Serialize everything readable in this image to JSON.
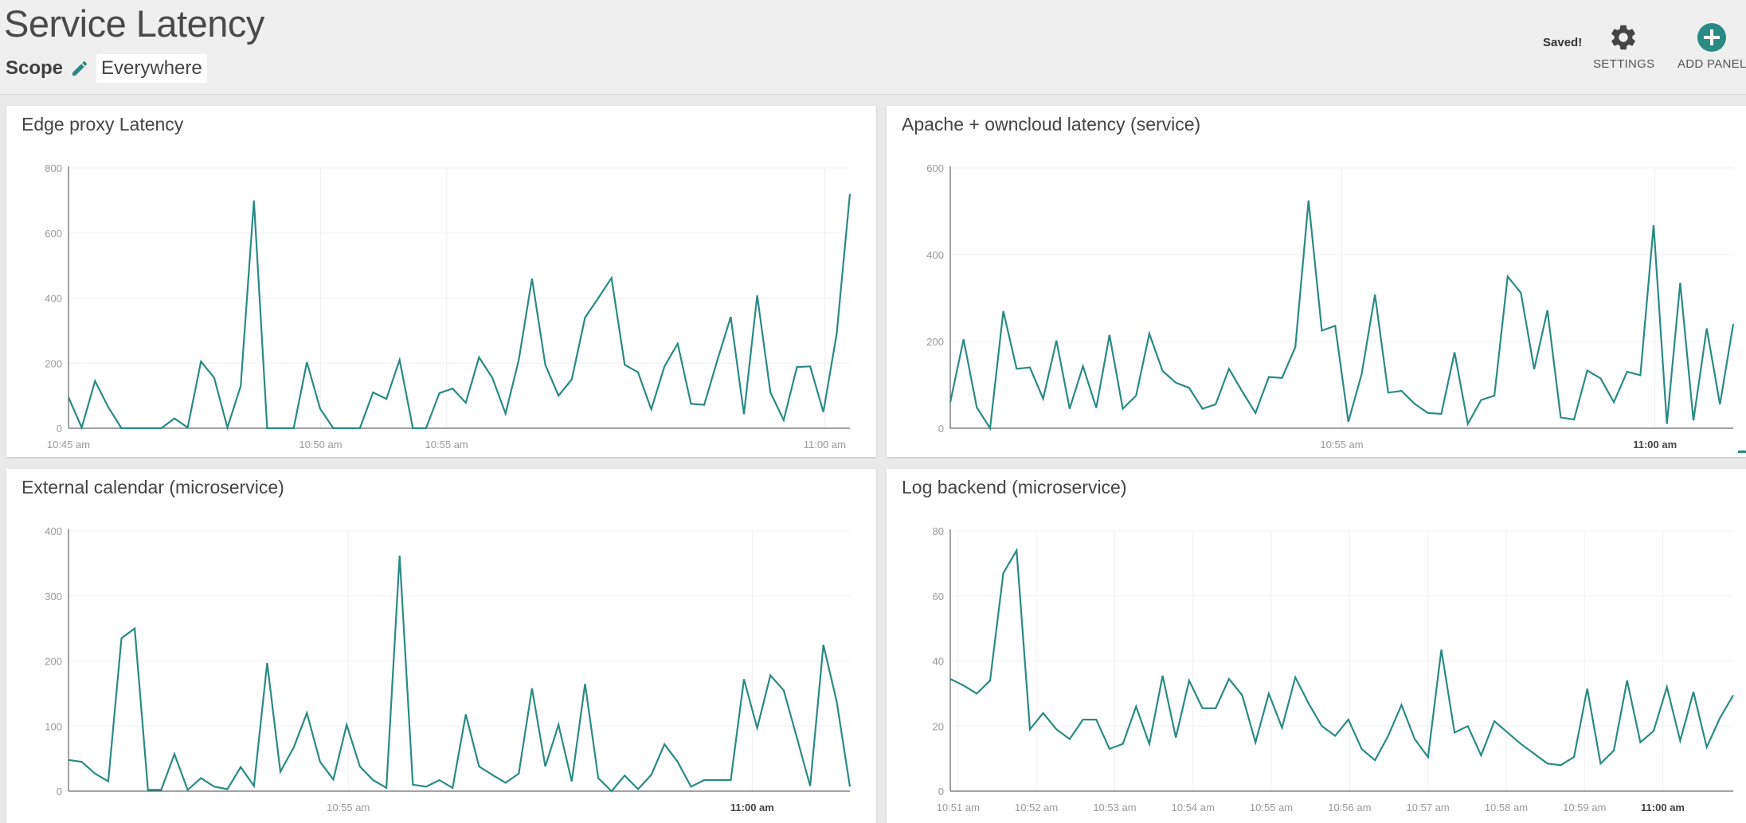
{
  "page": {
    "title": "Service Latency",
    "scope_label": "Scope",
    "scope_value": "Everywhere",
    "saved_text": "Saved!",
    "settings_label": "SETTINGS",
    "add_panel_label": "ADD PANEL",
    "accent_color": "#2a8a84",
    "icons": [
      "edit-icon",
      "gear-icon",
      "plus-circle-icon"
    ]
  },
  "chart_data": [
    {
      "type": "line",
      "title": "Edge proxy Latency",
      "ylim": [
        0,
        800
      ],
      "yticks": [
        0,
        200,
        400,
        600,
        800
      ],
      "xlim": [
        0,
        15.5
      ],
      "xticks": [
        {
          "x": 0,
          "label": "10:45 am",
          "bold": false
        },
        {
          "x": 5,
          "label": "10:50 am",
          "bold": false
        },
        {
          "x": 7.5,
          "label": "10:55 am",
          "bold": false
        },
        {
          "x": 15,
          "label": "11:00 am",
          "bold": false
        }
      ],
      "color": "#2a8a84",
      "grid": true,
      "values": [
        95,
        2,
        145,
        65,
        0,
        0,
        0,
        0,
        30,
        2,
        205,
        155,
        2,
        130,
        700,
        0,
        0,
        0,
        203,
        60,
        0,
        0,
        0,
        110,
        90,
        210,
        0,
        0,
        108,
        122,
        78,
        218,
        155,
        45,
        210,
        460,
        195,
        100,
        150,
        340,
        400,
        462,
        195,
        172,
        58,
        190,
        260,
        75,
        72,
        210,
        342,
        43,
        408,
        110,
        25,
        188,
        190,
        50,
        290,
        720
      ]
    },
    {
      "type": "line",
      "title": "Apache + owncloud latency (service)",
      "ylim": [
        0,
        600
      ],
      "yticks": [
        0,
        200,
        400,
        600
      ],
      "xlim": [
        0,
        10
      ],
      "xticks": [
        {
          "x": 5,
          "label": "10:55 am",
          "bold": false
        },
        {
          "x": 9,
          "label": "11:00 am",
          "bold": true
        }
      ],
      "color": "#2a8a84",
      "grid": true,
      "values": [
        60,
        205,
        48,
        0,
        270,
        137,
        140,
        68,
        202,
        45,
        143,
        47,
        215,
        45,
        75,
        218,
        132,
        105,
        93,
        45,
        55,
        137,
        85,
        35,
        118,
        116,
        187,
        525,
        225,
        236,
        15,
        125,
        308,
        82,
        86,
        56,
        35,
        33,
        175,
        10,
        65,
        75,
        350,
        312,
        136,
        272,
        25,
        20,
        133,
        115,
        60,
        130,
        122,
        468,
        10,
        335,
        18,
        230,
        55,
        240
      ]
    },
    {
      "type": "line",
      "title": "External calendar (microservice)",
      "ylim": [
        0,
        400
      ],
      "yticks": [
        0,
        100,
        200,
        300,
        400
      ],
      "xlim": [
        0,
        10
      ],
      "xticks": [
        {
          "x": 3.58,
          "label": "10:55 am",
          "bold": false
        },
        {
          "x": 8.75,
          "label": "11:00 am",
          "bold": true
        }
      ],
      "color": "#2a8a84",
      "grid": true,
      "values": [
        48,
        45,
        27,
        15,
        235,
        250,
        2,
        2,
        57,
        2,
        20,
        7,
        3,
        37,
        8,
        197,
        30,
        67,
        120,
        45,
        18,
        102,
        38,
        17,
        5,
        362,
        10,
        7,
        17,
        5,
        118,
        38,
        25,
        13,
        27,
        158,
        38,
        102,
        15,
        165,
        20,
        0,
        24,
        3,
        25,
        72,
        45,
        7,
        17,
        17,
        17,
        172,
        97,
        178,
        155,
        82,
        8,
        225,
        138,
        7
      ]
    },
    {
      "type": "line",
      "title": "Log backend (microservice)",
      "ylim": [
        0,
        80
      ],
      "yticks": [
        0,
        20,
        40,
        60,
        80
      ],
      "xlim": [
        0,
        10
      ],
      "xticks": [
        {
          "x": 0.1,
          "label": "10:51 am",
          "bold": false
        },
        {
          "x": 1.1,
          "label": "10:52 am",
          "bold": false
        },
        {
          "x": 2.1,
          "label": "10:53 am",
          "bold": false
        },
        {
          "x": 3.1,
          "label": "10:54 am",
          "bold": false
        },
        {
          "x": 4.1,
          "label": "10:55 am",
          "bold": false
        },
        {
          "x": 5.1,
          "label": "10:56 am",
          "bold": false
        },
        {
          "x": 6.1,
          "label": "10:57 am",
          "bold": false
        },
        {
          "x": 7.1,
          "label": "10:58 am",
          "bold": false
        },
        {
          "x": 8.1,
          "label": "10:59 am",
          "bold": false
        },
        {
          "x": 9.1,
          "label": "11:00 am",
          "bold": true
        }
      ],
      "color": "#2a8a84",
      "grid": true,
      "values": [
        34.5,
        32.5,
        30,
        34,
        67,
        74,
        19,
        24,
        19,
        16,
        22,
        22,
        13,
        14.5,
        26,
        14.5,
        35.5,
        16.5,
        34,
        25.5,
        25.5,
        34.5,
        29.5,
        15,
        30,
        19.5,
        35,
        27,
        20,
        17,
        22,
        13,
        9.5,
        17,
        26.5,
        16,
        10.5,
        43.5,
        18,
        20,
        11,
        21.5,
        18,
        14.5,
        11.5,
        8.5,
        8,
        10.5,
        31.5,
        8.5,
        12.5,
        34,
        15,
        18.5,
        32,
        15.5,
        30.5,
        13.5,
        22.5,
        29.5
      ]
    }
  ]
}
